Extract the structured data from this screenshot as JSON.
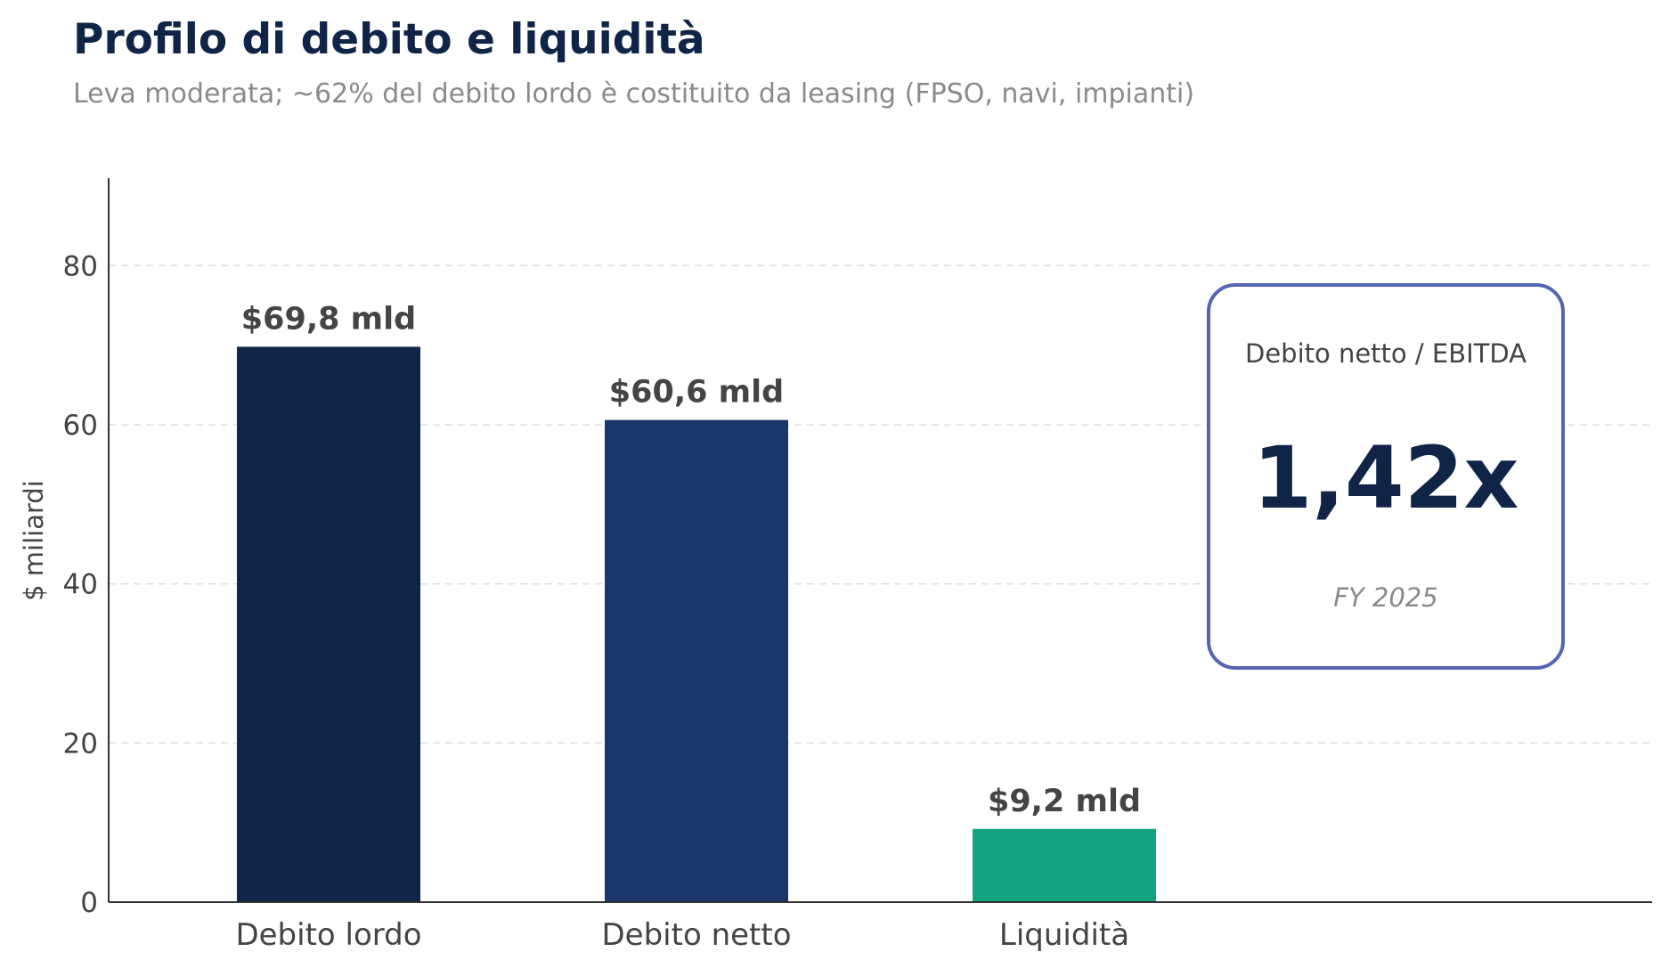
{
  "chart_data": {
    "type": "bar",
    "title": "Profilo di debito e liquidità",
    "subtitle": "Leva moderata; ~62% del debito lordo è costituito da leasing (FPSO, navi, impianti)",
    "ylabel": "$ miliardi",
    "xlabel": "",
    "ylim": [
      0,
      91
    ],
    "yticks": [
      0,
      20,
      40,
      60,
      80
    ],
    "grid": true,
    "categories": [
      "Debito lordo",
      "Debito netto",
      "Liquidità"
    ],
    "values": [
      69.8,
      60.6,
      9.2
    ],
    "data_labels": [
      "$69,8 mld",
      "$60,6 mld",
      "$9,2 mld"
    ],
    "colors": [
      "#0f2447",
      "#1b366b",
      "#12a381"
    ]
  },
  "kpi_box": {
    "label": "Debito netto / EBITDA",
    "value": "1,42x",
    "period": "FY 2025",
    "border_color": "#5566b0",
    "value_color": "#0f2447"
  }
}
